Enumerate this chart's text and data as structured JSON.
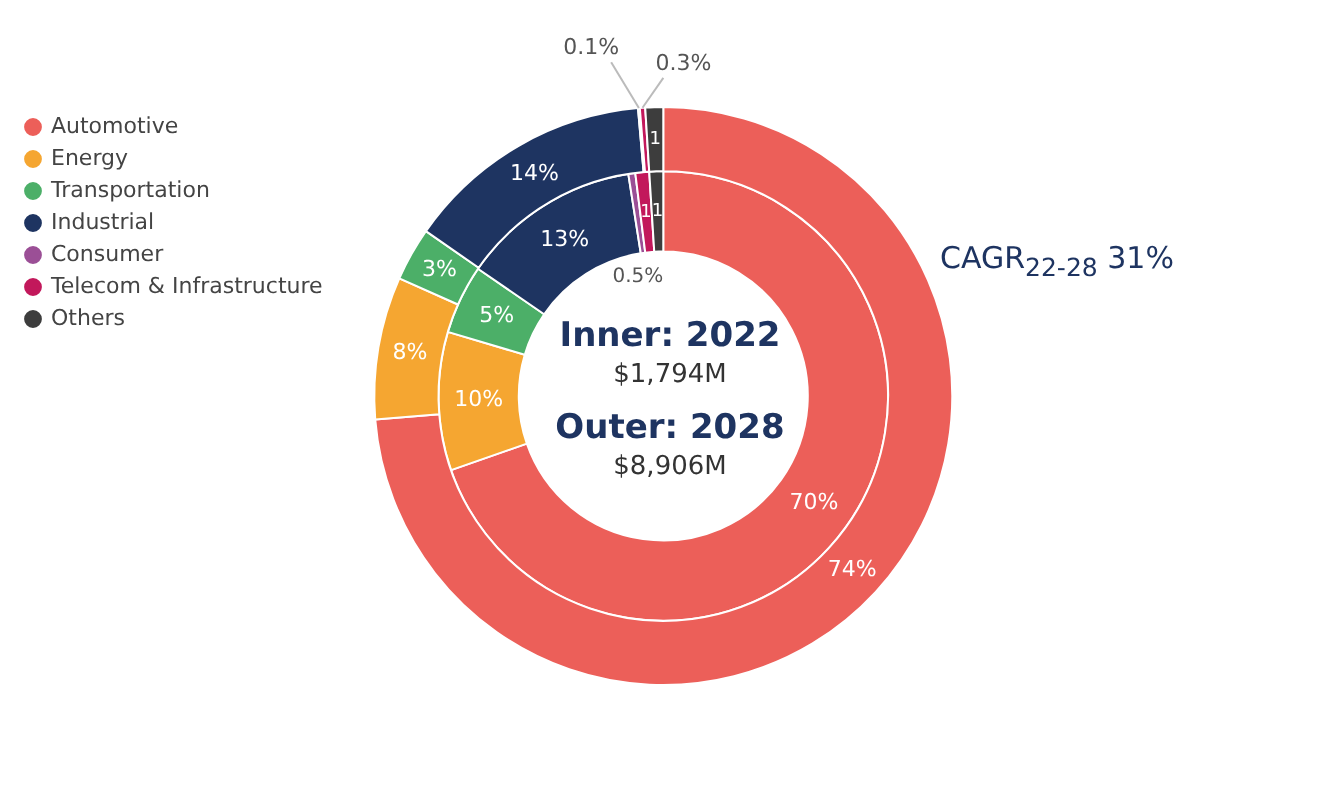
{
  "chart_data": {
    "type": "donut",
    "categories": [
      "Automotive",
      "Energy",
      "Transportation",
      "Industrial",
      "Consumer",
      "Telecom & Infrastructure",
      "Others"
    ],
    "colors": [
      "#ec5f59",
      "#f5a631",
      "#4caf68",
      "#1e3461",
      "#9b4f96",
      "#c2185b",
      "#3d3d3d"
    ],
    "series": [
      {
        "values": [
          74,
          8,
          3,
          14,
          0.1,
          0.3,
          1
        ],
        "value_labels": [
          "74%",
          "8%",
          "3%",
          "14%",
          "0.1%",
          "0.3%",
          "1"
        ]
      },
      {
        "values": [
          70,
          10,
          5,
          13,
          0.5,
          1,
          1
        ],
        "value_labels": [
          "70%",
          "10%",
          "5%",
          "13%",
          "0.5%",
          "1",
          "1"
        ]
      }
    ],
    "legend": "top left",
    "annotations": [
      "Inner: 2022",
      "$1,794M",
      "Outer: 2028",
      "$8,906M",
      "CAGR$_{22-28}$ 31%"
    ]
  }
}
